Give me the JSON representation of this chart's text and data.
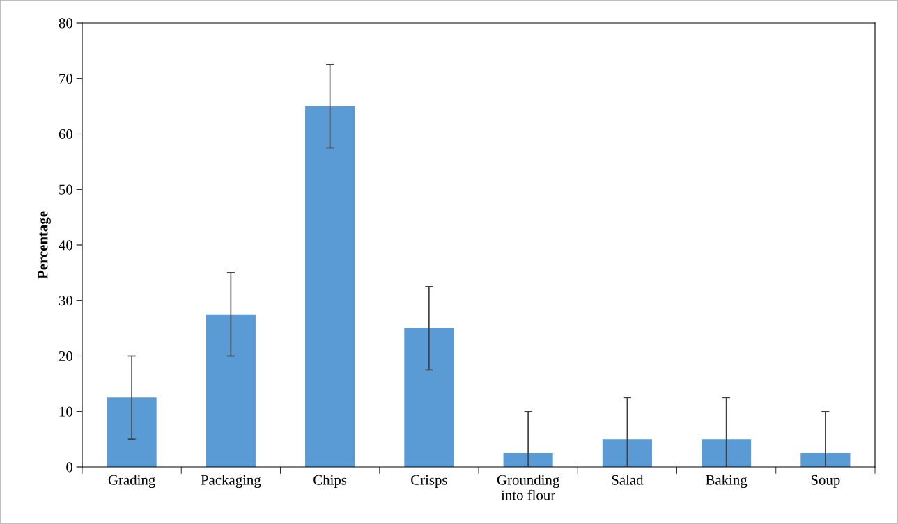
{
  "chart_data": {
    "type": "bar",
    "ylabel": "Percentage",
    "categories": [
      "Grading",
      "Packaging",
      "Chips",
      "Crisps",
      "Grounding\ninto flour",
      "Salad",
      "Baking",
      "Soup"
    ],
    "values": [
      12.5,
      27.5,
      65,
      25,
      2.5,
      5,
      5,
      2.5
    ],
    "errors": [
      [
        5,
        20
      ],
      [
        20,
        35
      ],
      [
        57.5,
        72.5
      ],
      [
        17.5,
        32.5
      ],
      [
        0,
        10
      ],
      [
        0,
        12.5
      ],
      [
        0,
        12.5
      ],
      [
        0,
        10
      ]
    ],
    "color": "#5b9bd5",
    "ylim": [
      0,
      80
    ],
    "yticks": [
      0,
      10,
      20,
      30,
      40,
      50,
      60,
      70,
      80
    ],
    "grid": false
  }
}
